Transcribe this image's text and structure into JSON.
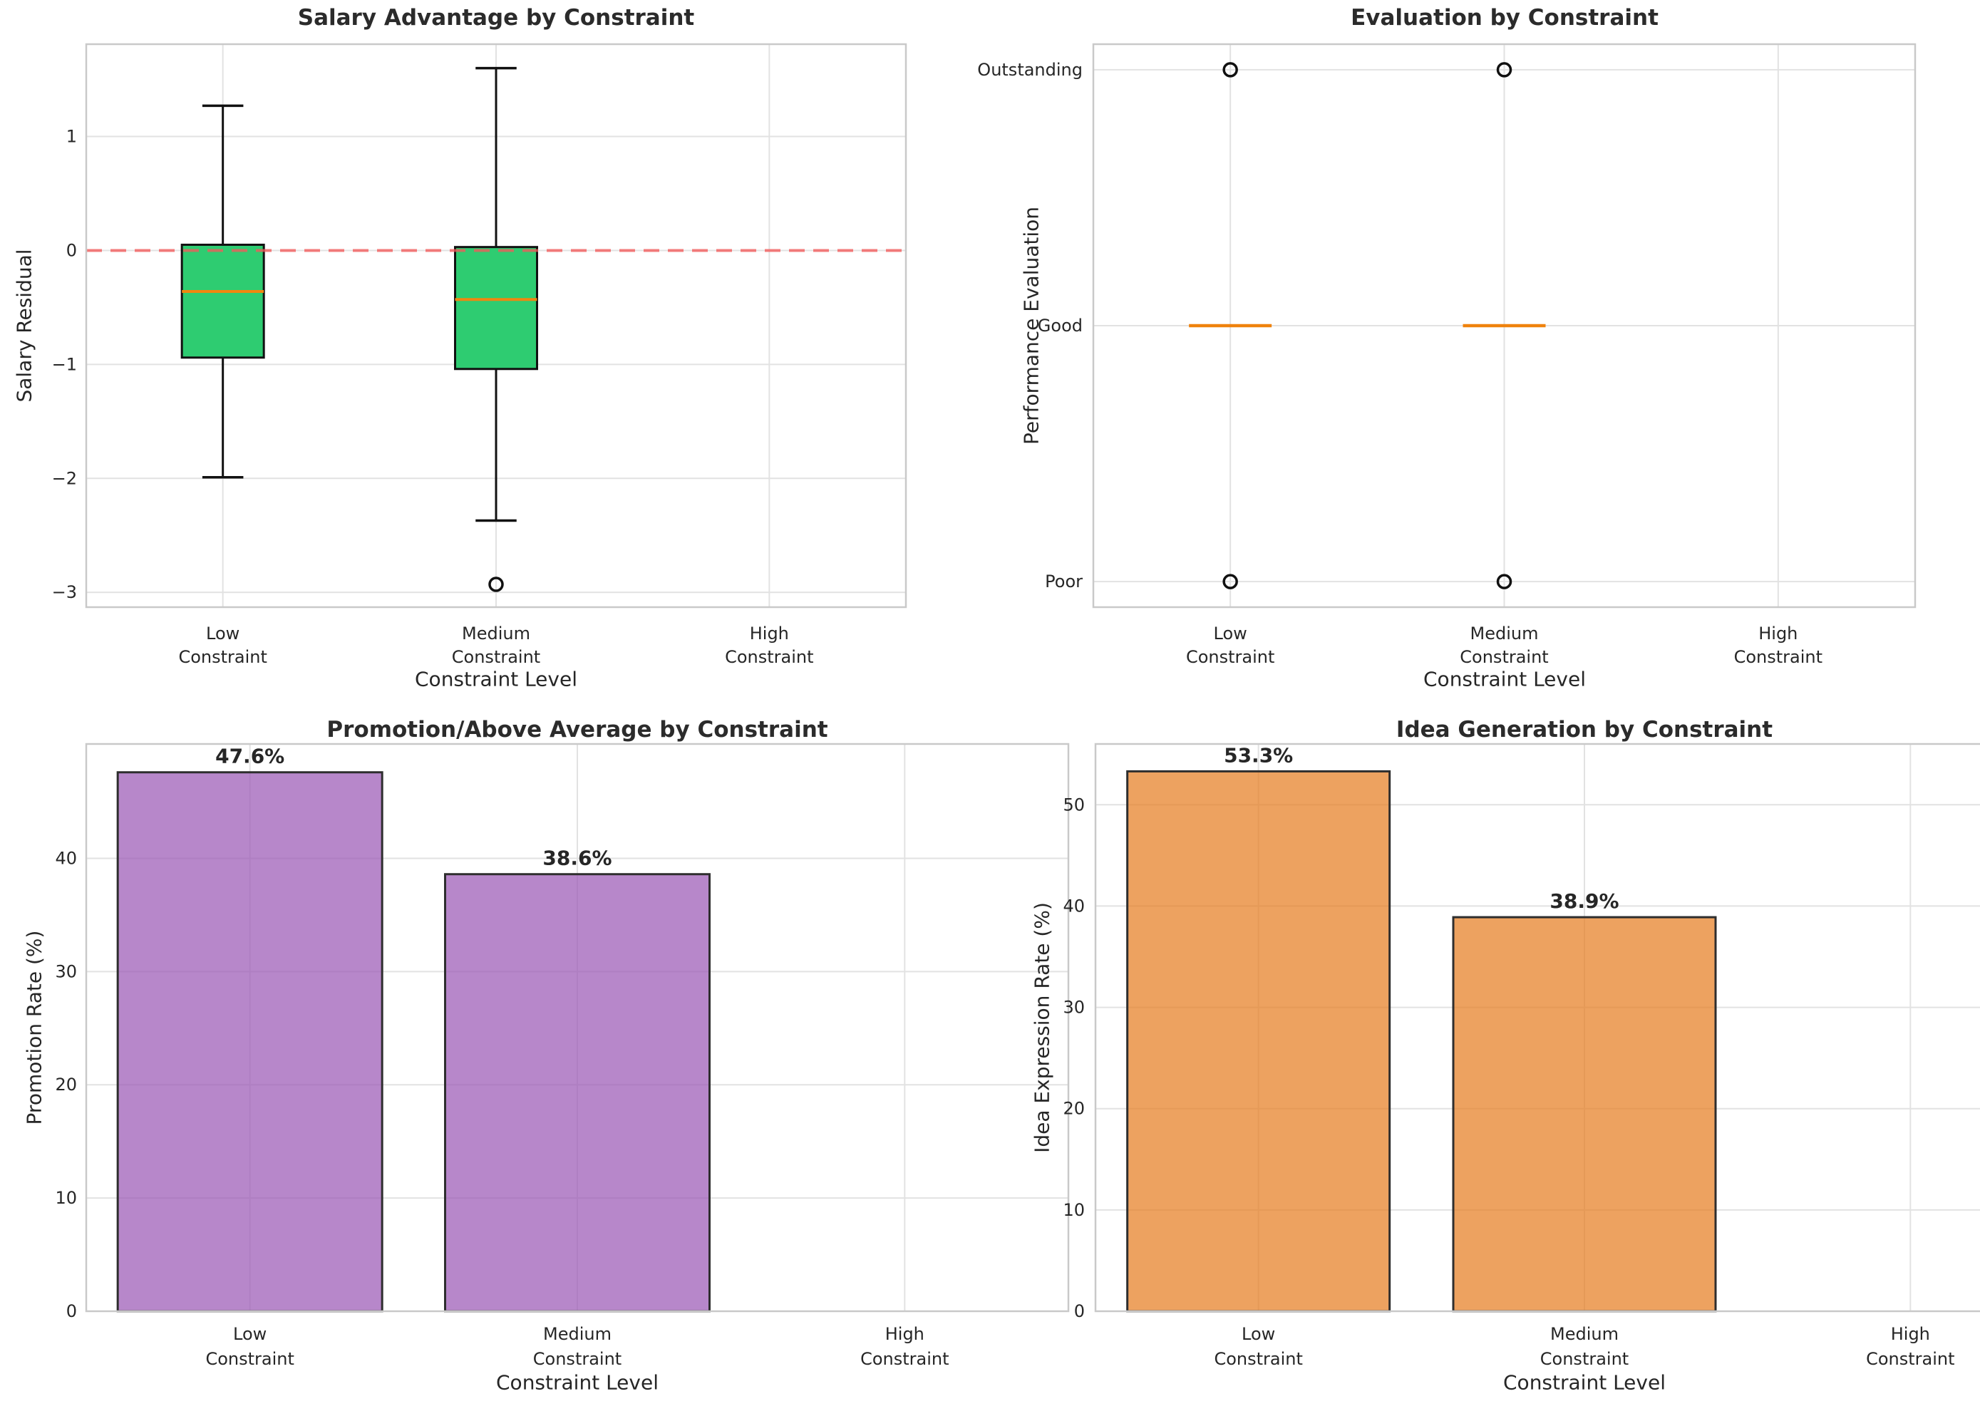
{
  "figure": {
    "background": "#ffffff",
    "text_color": "#262626",
    "grid_color": "#e2e2e2",
    "spine_color": "#c9c9c9"
  },
  "chart_data": [
    {
      "id": "salary",
      "type": "box",
      "title": "Salary Advantage by Constraint",
      "xlabel": "Constraint Level",
      "ylabel": "Salary Residual",
      "categories": [
        [
          "Low",
          "Constraint"
        ],
        [
          "Medium",
          "Constraint"
        ],
        [
          "High",
          "Constraint"
        ]
      ],
      "yticks": [
        {
          "value": 1,
          "label": "1"
        },
        {
          "value": 0,
          "label": "0"
        },
        {
          "value": -1,
          "label": "−1"
        },
        {
          "value": -2,
          "label": "−2"
        },
        {
          "value": -3,
          "label": "−3"
        }
      ],
      "ylim": [
        -3.13,
        1.81
      ],
      "grid": true,
      "refline": {
        "y": 0,
        "color": "#f25a5a",
        "opacity": 0.78,
        "dash": "22 12"
      },
      "style": {
        "box_fill": "#2ecc71",
        "box_edge": "#111111",
        "median_color": "#f0870f",
        "flier_edge": "#111111"
      },
      "boxes": [
        {
          "label": "Low Constraint",
          "whisker_low": -1.99,
          "q1": -0.94,
          "median": -0.36,
          "q3": 0.05,
          "whisker_high": 1.27,
          "outliers": []
        },
        {
          "label": "Medium Constraint",
          "whisker_low": -2.37,
          "q1": -1.04,
          "median": -0.43,
          "q3": 0.03,
          "whisker_high": 1.6,
          "outliers": [
            -2.93
          ]
        },
        {
          "label": "High Constraint",
          "empty": true,
          "outliers": []
        }
      ]
    },
    {
      "id": "evaluation",
      "type": "box",
      "title": "Evaluation by Constraint",
      "xlabel": "Constraint Level",
      "ylabel": "Performance Evaluation",
      "categories": [
        [
          "Low",
          "Constraint"
        ],
        [
          "Medium",
          "Constraint"
        ],
        [
          "High",
          "Constraint"
        ]
      ],
      "yticks": [
        {
          "value": 3,
          "label": "Outstanding"
        },
        {
          "value": 2,
          "label": "Good"
        },
        {
          "value": 1,
          "label": "Poor"
        }
      ],
      "ylim": [
        0.9,
        3.1
      ],
      "grid": true,
      "style": {
        "box_fill": "#2ecc71",
        "box_edge": "#111111",
        "median_color": "#ef820d",
        "flier_edge": "#111111"
      },
      "boxes": [
        {
          "label": "Low Constraint",
          "whisker_low": 2,
          "q1": 2,
          "median": 2,
          "q3": 2,
          "whisker_high": 2,
          "outliers": [
            3,
            1
          ]
        },
        {
          "label": "Medium Constraint",
          "whisker_low": 2,
          "q1": 2,
          "median": 2,
          "q3": 2,
          "whisker_high": 2,
          "outliers": [
            3,
            1
          ]
        },
        {
          "label": "High Constraint",
          "empty": true,
          "outliers": []
        }
      ]
    },
    {
      "id": "promotion",
      "type": "bar",
      "title": "Promotion/Above Average by Constraint",
      "xlabel": "Constraint Level",
      "ylabel": "Promotion Rate (%)",
      "categories": [
        [
          "Low",
          "Constraint"
        ],
        [
          "Medium",
          "Constraint"
        ],
        [
          "High",
          "Constraint"
        ]
      ],
      "values": [
        47.6,
        38.6,
        0
      ],
      "bar_labels": [
        "47.6%",
        "38.6%",
        ""
      ],
      "yticks": [
        {
          "value": 0,
          "label": "0"
        },
        {
          "value": 10,
          "label": "10"
        },
        {
          "value": 20,
          "label": "20"
        },
        {
          "value": 30,
          "label": "30"
        },
        {
          "value": 40,
          "label": "40"
        }
      ],
      "ylim": [
        0,
        50.1
      ],
      "grid": true,
      "style": {
        "bar_fill": "#9b59b6",
        "bar_opacity": 0.72,
        "bar_edge": "#2e2e2e"
      }
    },
    {
      "id": "idea",
      "type": "bar",
      "title": "Idea Generation by Constraint",
      "xlabel": "Constraint Level",
      "ylabel": "Idea Expression Rate (%)",
      "categories": [
        [
          "Low",
          "Constraint"
        ],
        [
          "Medium",
          "Constraint"
        ],
        [
          "High",
          "Constraint"
        ]
      ],
      "values": [
        53.3,
        38.9,
        0
      ],
      "bar_labels": [
        "53.3%",
        "38.9%",
        ""
      ],
      "yticks": [
        {
          "value": 0,
          "label": "0"
        },
        {
          "value": 10,
          "label": "10"
        },
        {
          "value": 20,
          "label": "20"
        },
        {
          "value": 30,
          "label": "30"
        },
        {
          "value": 40,
          "label": "40"
        },
        {
          "value": 50,
          "label": "50"
        }
      ],
      "ylim": [
        0,
        56.0
      ],
      "grid": true,
      "style": {
        "bar_fill": "#e67e22",
        "bar_opacity": 0.72,
        "bar_edge": "#2e2e2e"
      }
    }
  ]
}
